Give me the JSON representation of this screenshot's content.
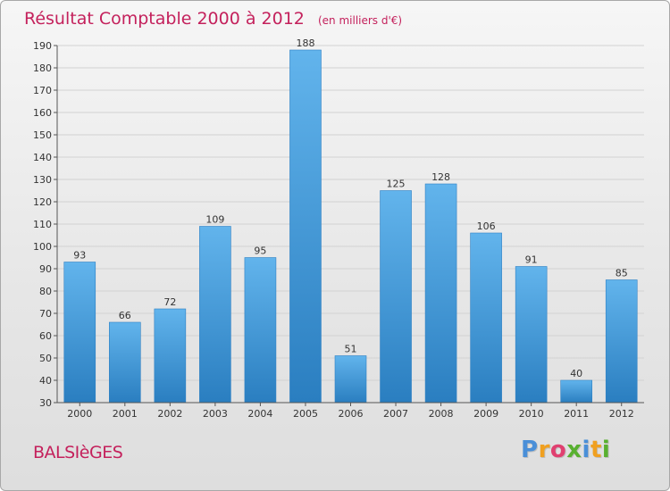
{
  "chart_data": {
    "type": "bar",
    "title": "Résultat Comptable 2000 à 2012",
    "subtitle": "(en milliers d'€)",
    "categories": [
      "2000",
      "2001",
      "2002",
      "2003",
      "2004",
      "2005",
      "2006",
      "2007",
      "2008",
      "2009",
      "2010",
      "2011",
      "2012"
    ],
    "values": [
      93,
      66,
      72,
      109,
      95,
      188,
      51,
      125,
      128,
      106,
      91,
      40,
      85
    ],
    "ylim": [
      30,
      190
    ],
    "yticks": [
      30,
      40,
      50,
      60,
      70,
      80,
      90,
      100,
      110,
      120,
      130,
      140,
      150,
      160,
      170,
      180,
      190
    ],
    "grid": true,
    "xlabel": "",
    "ylabel": ""
  },
  "footer": {
    "town": "BALSIèGES",
    "logo_letters": [
      "P",
      "r",
      "o",
      "x",
      "i",
      "t",
      "i"
    ],
    "logo_colors": [
      "#4a8fd8",
      "#f0a020",
      "#e04070",
      "#58b030",
      "#4a8fd8",
      "#f0a020",
      "#58b030"
    ]
  },
  "colors": {
    "accent": "#c4215c",
    "bar_top": "#62b4ec",
    "bar_bottom": "#2a7ec0"
  }
}
